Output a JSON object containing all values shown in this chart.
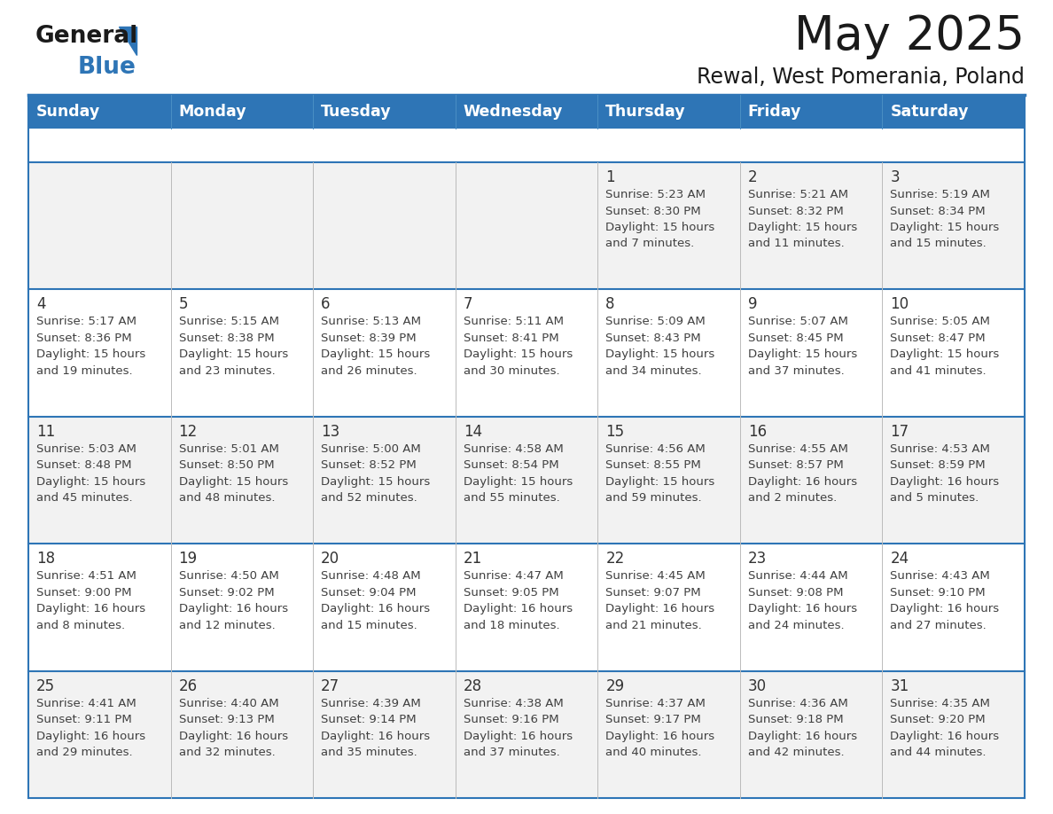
{
  "title": "May 2025",
  "subtitle": "Rewal, West Pomerania, Poland",
  "header_bg_color": "#2E75B6",
  "header_text_color": "#FFFFFF",
  "day_names": [
    "Sunday",
    "Monday",
    "Tuesday",
    "Wednesday",
    "Thursday",
    "Friday",
    "Saturday"
  ],
  "cell_bg_color": "#F2F2F2",
  "cell_bg_color_even": "#FFFFFF",
  "border_color": "#2E75B6",
  "text_color": "#404040",
  "day_num_color": "#333333",
  "logo_black": "#1a1a1a",
  "logo_blue": "#2E75B6",
  "title_color": "#1a1a1a",
  "calendar_data": [
    [
      null,
      null,
      null,
      null,
      {
        "day": 1,
        "sunrise": "5:23 AM",
        "sunset": "8:30 PM",
        "daylight_line1": "15 hours",
        "daylight_line2": "and 7 minutes."
      },
      {
        "day": 2,
        "sunrise": "5:21 AM",
        "sunset": "8:32 PM",
        "daylight_line1": "15 hours",
        "daylight_line2": "and 11 minutes."
      },
      {
        "day": 3,
        "sunrise": "5:19 AM",
        "sunset": "8:34 PM",
        "daylight_line1": "15 hours",
        "daylight_line2": "and 15 minutes."
      }
    ],
    [
      {
        "day": 4,
        "sunrise": "5:17 AM",
        "sunset": "8:36 PM",
        "daylight_line1": "15 hours",
        "daylight_line2": "and 19 minutes."
      },
      {
        "day": 5,
        "sunrise": "5:15 AM",
        "sunset": "8:38 PM",
        "daylight_line1": "15 hours",
        "daylight_line2": "and 23 minutes."
      },
      {
        "day": 6,
        "sunrise": "5:13 AM",
        "sunset": "8:39 PM",
        "daylight_line1": "15 hours",
        "daylight_line2": "and 26 minutes."
      },
      {
        "day": 7,
        "sunrise": "5:11 AM",
        "sunset": "8:41 PM",
        "daylight_line1": "15 hours",
        "daylight_line2": "and 30 minutes."
      },
      {
        "day": 8,
        "sunrise": "5:09 AM",
        "sunset": "8:43 PM",
        "daylight_line1": "15 hours",
        "daylight_line2": "and 34 minutes."
      },
      {
        "day": 9,
        "sunrise": "5:07 AM",
        "sunset": "8:45 PM",
        "daylight_line1": "15 hours",
        "daylight_line2": "and 37 minutes."
      },
      {
        "day": 10,
        "sunrise": "5:05 AM",
        "sunset": "8:47 PM",
        "daylight_line1": "15 hours",
        "daylight_line2": "and 41 minutes."
      }
    ],
    [
      {
        "day": 11,
        "sunrise": "5:03 AM",
        "sunset": "8:48 PM",
        "daylight_line1": "15 hours",
        "daylight_line2": "and 45 minutes."
      },
      {
        "day": 12,
        "sunrise": "5:01 AM",
        "sunset": "8:50 PM",
        "daylight_line1": "15 hours",
        "daylight_line2": "and 48 minutes."
      },
      {
        "day": 13,
        "sunrise": "5:00 AM",
        "sunset": "8:52 PM",
        "daylight_line1": "15 hours",
        "daylight_line2": "and 52 minutes."
      },
      {
        "day": 14,
        "sunrise": "4:58 AM",
        "sunset": "8:54 PM",
        "daylight_line1": "15 hours",
        "daylight_line2": "and 55 minutes."
      },
      {
        "day": 15,
        "sunrise": "4:56 AM",
        "sunset": "8:55 PM",
        "daylight_line1": "15 hours",
        "daylight_line2": "and 59 minutes."
      },
      {
        "day": 16,
        "sunrise": "4:55 AM",
        "sunset": "8:57 PM",
        "daylight_line1": "16 hours",
        "daylight_line2": "and 2 minutes."
      },
      {
        "day": 17,
        "sunrise": "4:53 AM",
        "sunset": "8:59 PM",
        "daylight_line1": "16 hours",
        "daylight_line2": "and 5 minutes."
      }
    ],
    [
      {
        "day": 18,
        "sunrise": "4:51 AM",
        "sunset": "9:00 PM",
        "daylight_line1": "16 hours",
        "daylight_line2": "and 8 minutes."
      },
      {
        "day": 19,
        "sunrise": "4:50 AM",
        "sunset": "9:02 PM",
        "daylight_line1": "16 hours",
        "daylight_line2": "and 12 minutes."
      },
      {
        "day": 20,
        "sunrise": "4:48 AM",
        "sunset": "9:04 PM",
        "daylight_line1": "16 hours",
        "daylight_line2": "and 15 minutes."
      },
      {
        "day": 21,
        "sunrise": "4:47 AM",
        "sunset": "9:05 PM",
        "daylight_line1": "16 hours",
        "daylight_line2": "and 18 minutes."
      },
      {
        "day": 22,
        "sunrise": "4:45 AM",
        "sunset": "9:07 PM",
        "daylight_line1": "16 hours",
        "daylight_line2": "and 21 minutes."
      },
      {
        "day": 23,
        "sunrise": "4:44 AM",
        "sunset": "9:08 PM",
        "daylight_line1": "16 hours",
        "daylight_line2": "and 24 minutes."
      },
      {
        "day": 24,
        "sunrise": "4:43 AM",
        "sunset": "9:10 PM",
        "daylight_line1": "16 hours",
        "daylight_line2": "and 27 minutes."
      }
    ],
    [
      {
        "day": 25,
        "sunrise": "4:41 AM",
        "sunset": "9:11 PM",
        "daylight_line1": "16 hours",
        "daylight_line2": "and 29 minutes."
      },
      {
        "day": 26,
        "sunrise": "4:40 AM",
        "sunset": "9:13 PM",
        "daylight_line1": "16 hours",
        "daylight_line2": "and 32 minutes."
      },
      {
        "day": 27,
        "sunrise": "4:39 AM",
        "sunset": "9:14 PM",
        "daylight_line1": "16 hours",
        "daylight_line2": "and 35 minutes."
      },
      {
        "day": 28,
        "sunrise": "4:38 AM",
        "sunset": "9:16 PM",
        "daylight_line1": "16 hours",
        "daylight_line2": "and 37 minutes."
      },
      {
        "day": 29,
        "sunrise": "4:37 AM",
        "sunset": "9:17 PM",
        "daylight_line1": "16 hours",
        "daylight_line2": "and 40 minutes."
      },
      {
        "day": 30,
        "sunrise": "4:36 AM",
        "sunset": "9:18 PM",
        "daylight_line1": "16 hours",
        "daylight_line2": "and 42 minutes."
      },
      {
        "day": 31,
        "sunrise": "4:35 AM",
        "sunset": "9:20 PM",
        "daylight_line1": "16 hours",
        "daylight_line2": "and 44 minutes."
      }
    ]
  ]
}
